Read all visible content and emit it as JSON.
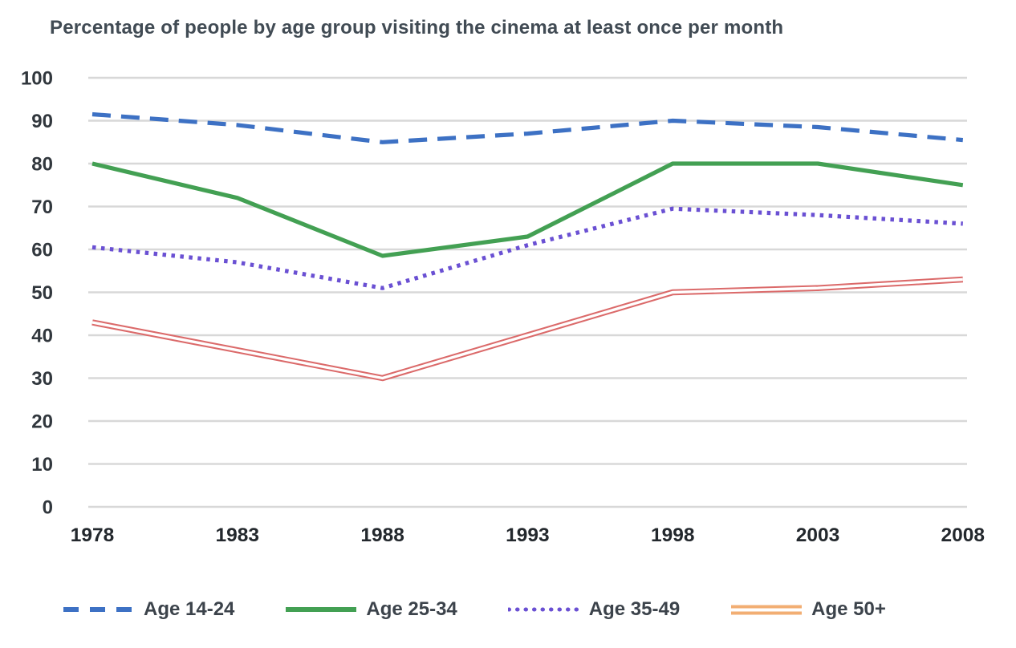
{
  "chart_data": {
    "type": "line",
    "title": "Percentage of people by age group visiting the cinema at least once per month",
    "xlabel": "",
    "ylabel": "",
    "categories": [
      "1978",
      "1983",
      "1988",
      "1993",
      "1998",
      "2003",
      "2008"
    ],
    "yticks": [
      0,
      10,
      20,
      30,
      40,
      50,
      60,
      70,
      80,
      90,
      100
    ],
    "ylim": [
      0,
      100
    ],
    "grid": "horizontal",
    "legend_position": "bottom",
    "series": [
      {
        "name": "Age 14-24",
        "values": [
          91.5,
          89,
          85,
          87,
          90,
          88.5,
          85.5
        ],
        "color": "#3d71c4",
        "line_style": "dashed"
      },
      {
        "name": "Age 25-34",
        "values": [
          80,
          72,
          58.5,
          63,
          80,
          80,
          75
        ],
        "color": "#43a053",
        "line_style": "solid"
      },
      {
        "name": "Age 35-49",
        "values": [
          60.5,
          57,
          51,
          61,
          69.5,
          68,
          66
        ],
        "color": "#6a50d3",
        "line_style": "dotted"
      },
      {
        "name": "Age 50+",
        "values": [
          43,
          36.5,
          30,
          40,
          50,
          51,
          53
        ],
        "color": "#db6a6a",
        "legend_color": "#f2ae73",
        "line_style": "double"
      }
    ]
  },
  "colors": {
    "background": "#ffffff",
    "gridline": "#d8d8d8",
    "title_text": "#414b54",
    "axis_text": "#2b3137",
    "legend_text": "#3c434b"
  }
}
